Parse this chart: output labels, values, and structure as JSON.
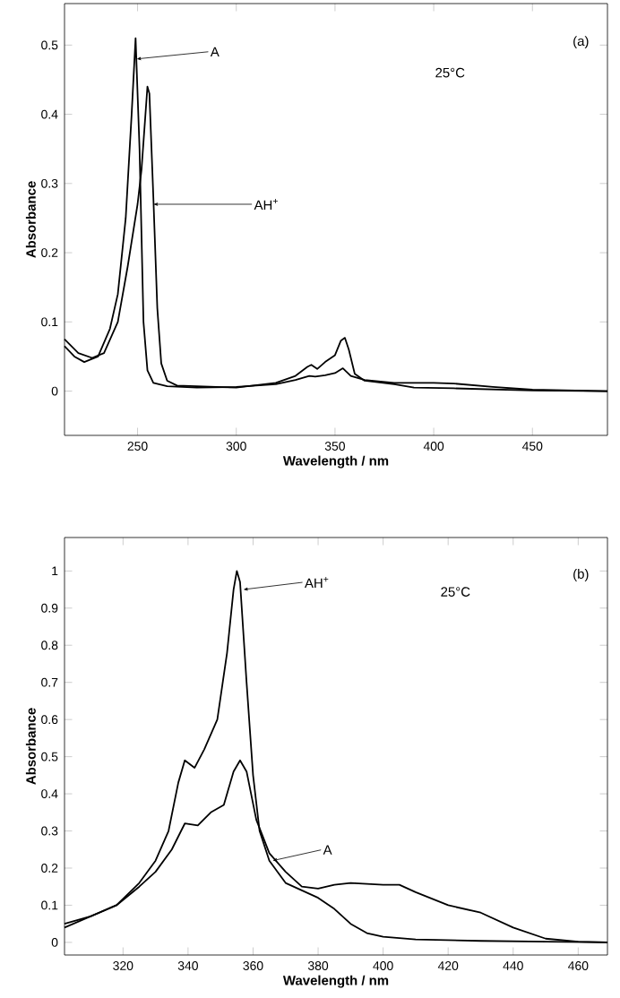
{
  "chart_data": [
    {
      "type": "line",
      "xlabel": "Wavelength / nm",
      "ylabel": "Absorbance",
      "xlim": [
        213,
        488
      ],
      "ylim": [
        -0.064,
        0.56
      ],
      "xticks": [
        250,
        300,
        350,
        400,
        450
      ],
      "yticks": [
        0,
        0.1,
        0.2,
        0.3,
        0.4,
        0.5
      ],
      "series": [
        {
          "color": "#000000",
          "x": [
            213,
            218,
            223,
            230,
            236,
            240,
            244,
            247,
            249,
            251,
            253,
            255,
            258,
            265,
            280,
            300,
            320,
            330,
            337,
            340,
            345,
            350,
            354,
            358,
            365,
            380,
            400,
            410,
            430,
            450,
            488
          ],
          "values": [
            0.065,
            0.05,
            0.042,
            0.05,
            0.09,
            0.14,
            0.25,
            0.4,
            0.51,
            0.35,
            0.1,
            0.03,
            0.012,
            0.007,
            0.005,
            0.006,
            0.01,
            0.016,
            0.022,
            0.021,
            0.023,
            0.026,
            0.033,
            0.022,
            0.016,
            0.012,
            0.012,
            0.011,
            0.006,
            0.002,
            0
          ]
        },
        {
          "color": "#000000",
          "x": [
            213,
            220,
            227,
            233,
            240,
            245,
            250,
            252,
            254,
            255,
            256,
            258,
            260,
            262,
            265,
            270,
            300,
            320,
            330,
            336,
            338,
            341,
            345,
            350,
            353,
            355,
            357,
            360,
            365,
            380,
            390,
            410,
            450,
            488
          ],
          "values": [
            0.075,
            0.055,
            0.048,
            0.055,
            0.1,
            0.18,
            0.27,
            0.32,
            0.4,
            0.44,
            0.43,
            0.28,
            0.12,
            0.04,
            0.015,
            0.008,
            0.005,
            0.012,
            0.022,
            0.035,
            0.038,
            0.032,
            0.042,
            0.052,
            0.073,
            0.077,
            0.06,
            0.025,
            0.015,
            0.01,
            0.005,
            0.004,
            0.001,
            0
          ]
        }
      ],
      "annotations": [
        {
          "text": "A",
          "x": 249.5,
          "y": 0.48
        },
        {
          "text": "AH$^{+}$",
          "x": 258,
          "y": 0.27
        },
        "25°C",
        "(a)"
      ]
    },
    {
      "type": "line",
      "xlabel": "Wavelength / nm",
      "ylabel": "Absorbance",
      "xlim": [
        302,
        469
      ],
      "ylim": [
        -0.034,
        1.09
      ],
      "xticks": [
        320,
        340,
        360,
        380,
        400,
        420,
        440,
        460
      ],
      "yticks": [
        0,
        0.1,
        0.2,
        0.3,
        0.4,
        0.5,
        0.6,
        0.7,
        0.8,
        0.9,
        1
      ],
      "series": [
        {
          "color": "#000000",
          "x": [
            302,
            310,
            318,
            325,
            330,
            334,
            337,
            339,
            342,
            345,
            349,
            352,
            354,
            355,
            356,
            358,
            360,
            362,
            365,
            370,
            375,
            380,
            385,
            390,
            395,
            400,
            410,
            430,
            450,
            469
          ],
          "values": [
            0.05,
            0.07,
            0.1,
            0.16,
            0.22,
            0.3,
            0.43,
            0.49,
            0.47,
            0.52,
            0.6,
            0.78,
            0.95,
            1.0,
            0.97,
            0.7,
            0.45,
            0.3,
            0.22,
            0.16,
            0.14,
            0.12,
            0.09,
            0.05,
            0.025,
            0.015,
            0.008,
            0.004,
            0.002,
            0
          ]
        },
        {
          "color": "#000000",
          "x": [
            302,
            310,
            318,
            325,
            330,
            335,
            339,
            343,
            347,
            351,
            354,
            356,
            358,
            361,
            365,
            370,
            375,
            380,
            385,
            390,
            400,
            405,
            410,
            420,
            430,
            440,
            450,
            460,
            469
          ],
          "values": [
            0.04,
            0.07,
            0.1,
            0.15,
            0.19,
            0.25,
            0.32,
            0.315,
            0.35,
            0.37,
            0.46,
            0.49,
            0.46,
            0.33,
            0.24,
            0.19,
            0.15,
            0.145,
            0.155,
            0.16,
            0.155,
            0.155,
            0.135,
            0.1,
            0.08,
            0.04,
            0.01,
            0.002,
            0
          ]
        }
      ],
      "annotations": [
        {
          "text": "AH$^{+}$",
          "x": 357,
          "y": 0.95
        },
        {
          "text": "A",
          "x": 366,
          "y": 0.22
        },
        "25°C",
        "(b)"
      ]
    }
  ]
}
